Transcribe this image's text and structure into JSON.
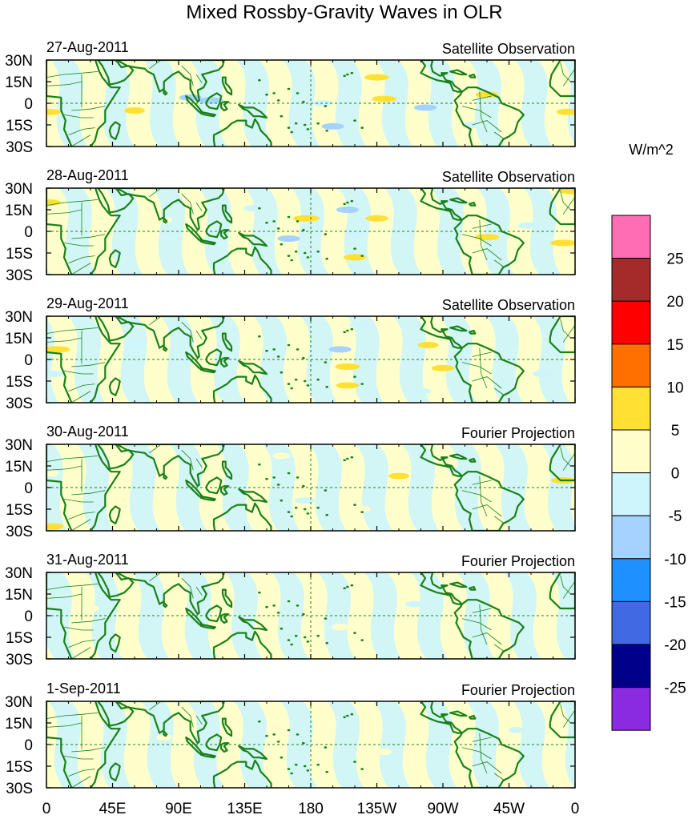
{
  "chart_data": {
    "type": "heatmap",
    "title": "Mixed Rossby-Gravity Waves in OLR",
    "units": "W/m^2",
    "x_tick_labels": [
      "0",
      "45E",
      "90E",
      "135E",
      "180",
      "135W",
      "90W",
      "45W",
      "0"
    ],
    "x_ticks_deg": [
      0,
      45,
      90,
      135,
      180,
      225,
      270,
      315,
      360
    ],
    "lon_range": [
      0,
      360
    ],
    "y_tick_labels": [
      "30N",
      "15N",
      "0",
      "15S",
      "30S"
    ],
    "y_ticks_deg": [
      30,
      15,
      0,
      -15,
      -30
    ],
    "lat_range": [
      -30,
      30
    ],
    "colorbar": {
      "levels": [
        -25,
        -20,
        -15,
        -10,
        -5,
        0,
        5,
        10,
        15,
        20,
        25
      ],
      "level_labels": [
        "25",
        "20",
        "15",
        "10",
        "5",
        "0",
        "-5",
        "-10",
        "-15",
        "-20",
        "-25"
      ],
      "colors_top_to_bottom": [
        "#ff6eb4",
        "#a52a2a",
        "#ff0000",
        "#ff7000",
        "#ffe033",
        "#ffffcc",
        "#cdf5fb",
        "#a5d2ff",
        "#1e90ff",
        "#4169e1",
        "#00008b",
        "#8a2be2"
      ]
    },
    "panels": [
      {
        "date": "27-Aug-2011",
        "label": "Satellite Observation",
        "anomalies": [
          {
            "lon": 2,
            "lat": -6,
            "value": 6
          },
          {
            "lon": 60,
            "lat": -5,
            "value": 5
          },
          {
            "lon": 98,
            "lat": 4,
            "value": -6
          },
          {
            "lon": 112,
            "lat": 2,
            "value": -7
          },
          {
            "lon": 160,
            "lat": 20,
            "value": 3
          },
          {
            "lon": 188,
            "lat": 0,
            "value": -4
          },
          {
            "lon": 195,
            "lat": -16,
            "value": -6
          },
          {
            "lon": 225,
            "lat": 18,
            "value": 7
          },
          {
            "lon": 230,
            "lat": 3,
            "value": 7
          },
          {
            "lon": 258,
            "lat": -3,
            "value": -6
          },
          {
            "lon": 300,
            "lat": 6,
            "value": 6
          },
          {
            "lon": 290,
            "lat": -15,
            "value": -4
          },
          {
            "lon": 355,
            "lat": -6,
            "value": 6
          }
        ]
      },
      {
        "date": "28-Aug-2011",
        "label": "Satellite Observation",
        "anomalies": [
          {
            "lon": 2,
            "lat": 20,
            "value": 6
          },
          {
            "lon": 80,
            "lat": 8,
            "value": 3
          },
          {
            "lon": 140,
            "lat": 16,
            "value": -3
          },
          {
            "lon": 165,
            "lat": -5,
            "value": -6
          },
          {
            "lon": 177,
            "lat": 9,
            "value": 8
          },
          {
            "lon": 205,
            "lat": 15,
            "value": -6
          },
          {
            "lon": 225,
            "lat": 9,
            "value": 6
          },
          {
            "lon": 210,
            "lat": -2,
            "value": -5
          },
          {
            "lon": 210,
            "lat": -18,
            "value": 6
          },
          {
            "lon": 280,
            "lat": 20,
            "value": -5
          },
          {
            "lon": 300,
            "lat": -4,
            "value": 7
          },
          {
            "lon": 328,
            "lat": 4,
            "value": -5
          },
          {
            "lon": 352,
            "lat": -8,
            "value": 8
          },
          {
            "lon": 357,
            "lat": 28,
            "value": 6
          }
        ]
      },
      {
        "date": "29-Aug-2011",
        "label": "Satellite Observation",
        "anomalies": [
          {
            "lon": 7,
            "lat": 7,
            "value": 8
          },
          {
            "lon": 5,
            "lat": -10,
            "value": -5
          },
          {
            "lon": 60,
            "lat": 10,
            "value": -3
          },
          {
            "lon": 170,
            "lat": 10,
            "value": 3
          },
          {
            "lon": 200,
            "lat": 7,
            "value": -6
          },
          {
            "lon": 205,
            "lat": -5,
            "value": 7
          },
          {
            "lon": 205,
            "lat": -18,
            "value": 6
          },
          {
            "lon": 213,
            "lat": 24,
            "value": -5
          },
          {
            "lon": 260,
            "lat": 10,
            "value": 5
          },
          {
            "lon": 270,
            "lat": -6,
            "value": 6
          },
          {
            "lon": 255,
            "lat": -22,
            "value": -5
          },
          {
            "lon": 338,
            "lat": -10,
            "value": -5
          }
        ]
      },
      {
        "date": "30-Aug-2011",
        "label": "Fourier Projection",
        "anomalies": [
          {
            "lon": 4,
            "lat": -27,
            "value": 6
          },
          {
            "lon": 2,
            "lat": 10,
            "value": 4
          },
          {
            "lon": 160,
            "lat": 22,
            "value": 3
          },
          {
            "lon": 176,
            "lat": -9,
            "value": -5
          },
          {
            "lon": 215,
            "lat": -15,
            "value": 3
          },
          {
            "lon": 240,
            "lat": 8,
            "value": 5
          },
          {
            "lon": 280,
            "lat": 12,
            "value": -4
          },
          {
            "lon": 352,
            "lat": 5,
            "value": 7
          }
        ]
      },
      {
        "date": "31-Aug-2011",
        "label": "Fourier Projection",
        "anomalies": [
          {
            "lon": 30,
            "lat": 5,
            "value": 3
          },
          {
            "lon": 150,
            "lat": 5,
            "value": 3
          },
          {
            "lon": 200,
            "lat": -8,
            "value": 3
          },
          {
            "lon": 250,
            "lat": 8,
            "value": -3
          },
          {
            "lon": 340,
            "lat": 10,
            "value": 3
          }
        ]
      },
      {
        "date": "1-Sep-2011",
        "label": "Fourier Projection",
        "anomalies": [
          {
            "lon": 80,
            "lat": 5,
            "value": 2
          },
          {
            "lon": 230,
            "lat": -5,
            "value": 2
          },
          {
            "lon": 320,
            "lat": 10,
            "value": -2
          }
        ]
      }
    ]
  }
}
